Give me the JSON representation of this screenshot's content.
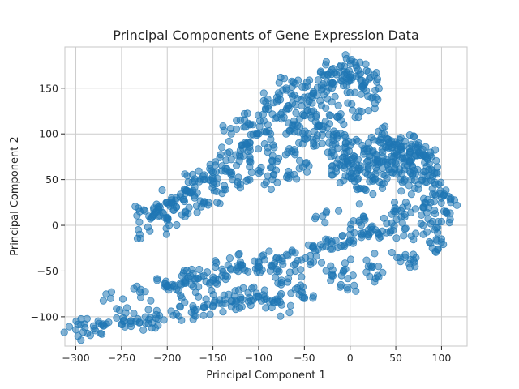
{
  "chart_data": {
    "type": "scatter",
    "title": "Principal Components of Gene Expression Data",
    "xlabel": "Principal Component 1",
    "ylabel": "Principal Component 2",
    "xlim": [
      -312,
      128
    ],
    "ylim": [
      -132,
      195
    ],
    "xticks": [
      -300,
      -250,
      -200,
      -150,
      -100,
      -50,
      0,
      50,
      100
    ],
    "yticks": [
      -100,
      -50,
      0,
      50,
      100,
      150
    ],
    "xtick_labels": [
      "−300",
      "−250",
      "−200",
      "−150",
      "−100",
      "−50",
      "0",
      "50",
      "100"
    ],
    "ytick_labels": [
      "−100",
      "−50",
      "0",
      "50",
      "100",
      "150"
    ],
    "grid": true,
    "point_color": "#1f77b4",
    "point_alpha": 0.55,
    "clusters": [
      {
        "points": [
          [
            -290,
            -112
          ],
          [
            -270,
            -110
          ],
          [
            -250,
            -108
          ],
          [
            -230,
            -106
          ],
          [
            -210,
            -102
          ],
          [
            -190,
            -97
          ],
          [
            -170,
            -93
          ],
          [
            -150,
            -88
          ],
          [
            -130,
            -83
          ],
          [
            -110,
            -79
          ],
          [
            -95,
            -76
          ],
          [
            -262,
            -80
          ],
          [
            -230,
            -73
          ],
          [
            -200,
            -66
          ],
          [
            -180,
            -62
          ],
          [
            -300,
            -114
          ],
          [
            -280,
            -113
          ],
          [
            -240,
            -107
          ],
          [
            -220,
            -103
          ],
          [
            -160,
            -90
          ],
          [
            -140,
            -86
          ],
          [
            -120,
            -81
          ],
          [
            -100,
            -78
          ],
          [
            -85,
            -82
          ],
          [
            -75,
            -87
          ]
        ]
      },
      {
        "points": [
          [
            -200,
            -66
          ],
          [
            -180,
            -60
          ],
          [
            -160,
            -55
          ],
          [
            -140,
            -48
          ],
          [
            -120,
            -43
          ],
          [
            -100,
            -39
          ],
          [
            -80,
            -35
          ],
          [
            -60,
            -30
          ],
          [
            -40,
            -25
          ],
          [
            -20,
            -20
          ],
          [
            0,
            -16
          ],
          [
            20,
            -12
          ],
          [
            40,
            -8
          ],
          [
            60,
            -4
          ],
          [
            80,
            0
          ],
          [
            100,
            4
          ],
          [
            110,
            25
          ],
          [
            100,
            30
          ],
          [
            80,
            20
          ],
          [
            60,
            12
          ],
          [
            40,
            2
          ],
          [
            20,
            -5
          ],
          [
            0,
            -10
          ],
          [
            -20,
            -18
          ],
          [
            -40,
            -40
          ],
          [
            -60,
            -50
          ],
          [
            -80,
            -48
          ],
          [
            -100,
            -45
          ],
          [
            -120,
            -40
          ],
          [
            -140,
            -55
          ],
          [
            -60,
            -70
          ],
          [
            -20,
            -55
          ],
          [
            20,
            -45
          ],
          [
            60,
            -35
          ],
          [
            90,
            -25
          ],
          [
            100,
            -15
          ],
          [
            70,
            -40
          ],
          [
            30,
            -55
          ],
          [
            -10,
            -65
          ],
          [
            -50,
            -80
          ],
          [
            -75,
            -60
          ],
          [
            -150,
            -60
          ],
          [
            -170,
            -58
          ],
          [
            -190,
            -70
          ],
          [
            -30,
            10
          ],
          [
            10,
            5
          ],
          [
            50,
            15
          ],
          [
            85,
            28
          ],
          [
            105,
            15
          ],
          [
            -5,
            -48
          ]
        ]
      },
      {
        "points": [
          [
            -230,
            15
          ],
          [
            -220,
            10
          ],
          [
            -210,
            20
          ],
          [
            -200,
            25
          ],
          [
            -190,
            30
          ],
          [
            -180,
            35
          ],
          [
            -170,
            42
          ],
          [
            -160,
            50
          ],
          [
            -150,
            58
          ],
          [
            -140,
            65
          ],
          [
            -130,
            72
          ],
          [
            -120,
            82
          ],
          [
            -110,
            90
          ],
          [
            -100,
            100
          ],
          [
            -90,
            110
          ],
          [
            -80,
            118
          ],
          [
            -70,
            126
          ],
          [
            -60,
            132
          ],
          [
            -50,
            140
          ],
          [
            -40,
            146
          ],
          [
            -30,
            150
          ],
          [
            -20,
            155
          ],
          [
            -10,
            158
          ],
          [
            0,
            162
          ],
          [
            10,
            165
          ],
          [
            20,
            168
          ],
          [
            -50,
            120
          ],
          [
            -70,
            100
          ],
          [
            -90,
            85
          ],
          [
            -110,
            70
          ],
          [
            -130,
            55
          ],
          [
            -150,
            45
          ],
          [
            -170,
            30
          ],
          [
            -190,
            20
          ],
          [
            -210,
            10
          ],
          [
            -60,
            110
          ],
          [
            -40,
            125
          ],
          [
            -20,
            135
          ],
          [
            0,
            145
          ],
          [
            15,
            150
          ],
          [
            -100,
            60
          ],
          [
            -80,
            70
          ],
          [
            -60,
            80
          ],
          [
            -40,
            90
          ],
          [
            -120,
            45
          ],
          [
            -140,
            35
          ],
          [
            -160,
            25
          ],
          [
            -180,
            15
          ],
          [
            -200,
            5
          ],
          [
            -230,
            -10
          ],
          [
            -170,
            48
          ],
          [
            -130,
            100
          ],
          [
            -120,
            115
          ],
          [
            -110,
            110
          ],
          [
            -90,
            130
          ],
          [
            -80,
            140
          ],
          [
            -70,
            150
          ],
          [
            -60,
            155
          ],
          [
            -30,
            165
          ],
          [
            -20,
            170
          ],
          [
            -10,
            175
          ],
          [
            0,
            180
          ],
          [
            -50,
            95
          ],
          [
            -30,
            105
          ],
          [
            -10,
            115
          ],
          [
            -20,
            80
          ],
          [
            -45,
            65
          ],
          [
            -65,
            55
          ],
          [
            -85,
            50
          ],
          [
            10,
            125
          ],
          [
            25,
            140
          ],
          [
            30,
            160
          ],
          [
            -35,
            110
          ],
          [
            -15,
            100
          ],
          [
            -5,
            90
          ]
        ]
      },
      {
        "points": [
          [
            -5,
            70
          ],
          [
            5,
            75
          ],
          [
            15,
            78
          ],
          [
            25,
            80
          ],
          [
            35,
            83
          ],
          [
            45,
            85
          ],
          [
            55,
            86
          ],
          [
            65,
            84
          ],
          [
            75,
            80
          ],
          [
            85,
            72
          ],
          [
            90,
            60
          ],
          [
            80,
            55
          ],
          [
            70,
            60
          ],
          [
            60,
            65
          ],
          [
            50,
            70
          ],
          [
            40,
            72
          ],
          [
            30,
            70
          ],
          [
            20,
            65
          ],
          [
            10,
            60
          ],
          [
            0,
            58
          ],
          [
            -10,
            65
          ],
          [
            -20,
            55
          ],
          [
            5,
            48
          ],
          [
            25,
            52
          ],
          [
            45,
            58
          ],
          [
            65,
            70
          ],
          [
            80,
            78
          ],
          [
            95,
            58
          ],
          [
            90,
            40
          ],
          [
            75,
            45
          ],
          [
            55,
            50
          ],
          [
            35,
            45
          ],
          [
            15,
            40
          ],
          [
            -5,
            85
          ],
          [
            20,
            90
          ],
          [
            40,
            95
          ],
          [
            60,
            92
          ],
          [
            75,
            90
          ],
          [
            35,
            100
          ],
          [
            45,
            75
          ]
        ]
      }
    ]
  }
}
